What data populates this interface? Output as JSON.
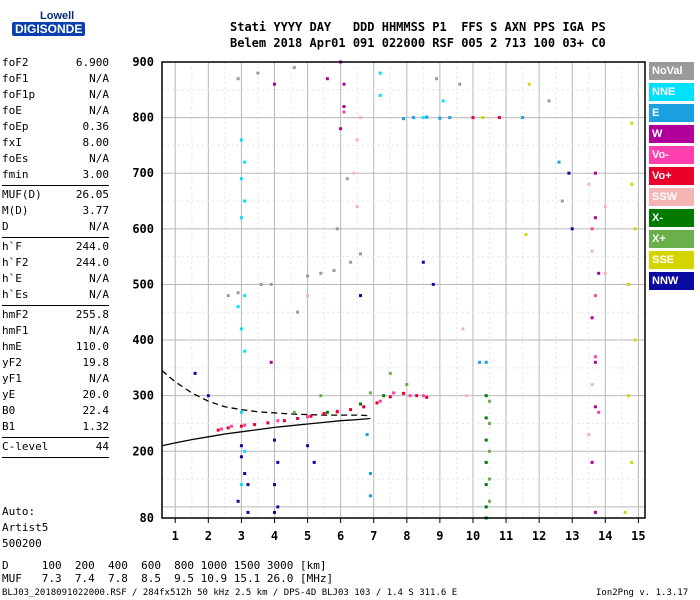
{
  "logo": {
    "top": "Lowell",
    "bottom": "DIGISONDE"
  },
  "header": {
    "line1": "Stati YYYY DAY   DDD HHMMSS P1  FFS S AXN PPS IGA PS",
    "line2": "Belem 2018 Apr01 091 022000 RSF 005 2 713 100 03+ C0"
  },
  "params": [
    {
      "key": "foF2",
      "value": "6.900"
    },
    {
      "key": "foF1",
      "value": "N/A"
    },
    {
      "key": "foF1p",
      "value": "N/A"
    },
    {
      "key": "foE",
      "value": "N/A"
    },
    {
      "key": "foEp",
      "value": "0.36"
    },
    {
      "key": "fxI",
      "value": "8.00"
    },
    {
      "key": "foEs",
      "value": "N/A"
    },
    {
      "key": "fmin",
      "value": "3.00"
    },
    {
      "key": "MUF(D)",
      "value": "26.05"
    },
    {
      "key": "M(D)",
      "value": "3.77"
    },
    {
      "key": "D",
      "value": "N/A"
    },
    {
      "key": "h`F",
      "value": "244.0"
    },
    {
      "key": "h`F2",
      "value": "244.0"
    },
    {
      "key": "h`E",
      "value": "N/A"
    },
    {
      "key": "h`Es",
      "value": "N/A"
    },
    {
      "key": "hmF2",
      "value": "255.8"
    },
    {
      "key": "hmF1",
      "value": "N/A"
    },
    {
      "key": "hmE",
      "value": "110.0"
    },
    {
      "key": "yF2",
      "value": "19.8"
    },
    {
      "key": "yF1",
      "value": "N/A"
    },
    {
      "key": "yE",
      "value": "20.0"
    },
    {
      "key": "B0",
      "value": "22.4"
    },
    {
      "key": "B1",
      "value": "1.32"
    },
    {
      "key": "C-level",
      "value": "44"
    }
  ],
  "auto": {
    "label": "Auto:",
    "artist": "Artist5",
    "version": "500200"
  },
  "footer": {
    "d_row": "D     100  200  400  600  800 1000 1500 3000 [km]",
    "muf_row": "MUF   7.3  7.4  7.8  8.5  9.5 10.9 15.1 26.0 [MHz]",
    "file_row": "BLJ03_2018091022000.RSF / 284fx512h 50 kHz 2.5 km / DPS-4D BLJ03 103 / 1.4 S 311.6 E",
    "version_row": "Ion2Png v. 1.3.17"
  },
  "legend": [
    {
      "label": "NoVal",
      "color": "#9a9a9a"
    },
    {
      "label": "NNE",
      "color": "#00e0ff"
    },
    {
      "label": "E",
      "color": "#1a9fdf"
    },
    {
      "label": "W",
      "color": "#b0009a"
    },
    {
      "label": "Vo-",
      "color": "#ff3fae"
    },
    {
      "label": "Vo+",
      "color": "#e8002a"
    },
    {
      "label": "SSW",
      "color": "#f4b4b4"
    },
    {
      "label": "X-",
      "color": "#007a00"
    },
    {
      "label": "X+",
      "color": "#6ab04a"
    },
    {
      "label": "SSE",
      "color": "#d4d400"
    },
    {
      "label": "NNW",
      "color": "#0a0aa0"
    }
  ],
  "chart_data": {
    "type": "scatter",
    "xlabel": "",
    "ylabel": "",
    "xlim": [
      0.6,
      15.2
    ],
    "ylim": [
      80,
      900
    ],
    "x_ticks": [
      1,
      2,
      3,
      4,
      5,
      6,
      7,
      8,
      9,
      10,
      11,
      12,
      13,
      14,
      15
    ],
    "y_ticks": [
      80,
      200,
      300,
      400,
      500,
      600,
      700,
      800,
      900
    ],
    "grid": true,
    "series": [
      {
        "name": "SSE",
        "values": [
          [
            14.8,
            790
          ],
          [
            14.8,
            680
          ],
          [
            14.9,
            600
          ],
          [
            14.7,
            500
          ],
          [
            14.9,
            400
          ],
          [
            14.7,
            300
          ],
          [
            14.8,
            180
          ],
          [
            14.6,
            90
          ],
          [
            11.7,
            860
          ],
          [
            11.6,
            590
          ],
          [
            10.3,
            800
          ]
        ]
      },
      {
        "name": "NNE",
        "values": [
          [
            3.0,
            760
          ],
          [
            3.1,
            720
          ],
          [
            3.0,
            690
          ],
          [
            3.1,
            650
          ],
          [
            3.0,
            620
          ],
          [
            3.1,
            480
          ],
          [
            2.9,
            460
          ],
          [
            3.0,
            420
          ],
          [
            3.1,
            380
          ],
          [
            3.0,
            270
          ],
          [
            3.1,
            200
          ],
          [
            3.0,
            140
          ],
          [
            7.2,
            880
          ],
          [
            7.2,
            840
          ],
          [
            8.5,
            800
          ],
          [
            9.1,
            830
          ]
        ]
      },
      {
        "name": "E",
        "values": [
          [
            8.2,
            800
          ],
          [
            8.6,
            801
          ],
          [
            9.0,
            799
          ],
          [
            9.3,
            800
          ],
          [
            7.9,
            798
          ],
          [
            6.8,
            230
          ],
          [
            6.9,
            160
          ],
          [
            6.9,
            120
          ],
          [
            11.5,
            800
          ],
          [
            12.6,
            720
          ],
          [
            10.2,
            360
          ],
          [
            10.4,
            360
          ]
        ]
      },
      {
        "name": "W",
        "values": [
          [
            6.0,
            900
          ],
          [
            6.1,
            860
          ],
          [
            6.1,
            820
          ],
          [
            6.0,
            780
          ],
          [
            13.7,
            700
          ],
          [
            13.7,
            620
          ],
          [
            13.8,
            520
          ],
          [
            13.6,
            440
          ],
          [
            13.7,
            360
          ],
          [
            13.7,
            280
          ],
          [
            13.6,
            180
          ],
          [
            13.7,
            90
          ],
          [
            4.0,
            860
          ],
          [
            3.9,
            360
          ],
          [
            5.6,
            870
          ]
        ]
      },
      {
        "name": "Vo-",
        "values": [
          [
            6.1,
            810
          ],
          [
            13.6,
            600
          ],
          [
            13.7,
            480
          ],
          [
            13.7,
            370
          ],
          [
            13.8,
            270
          ],
          [
            2.4,
            240
          ],
          [
            2.7,
            245
          ],
          [
            3.1,
            247
          ],
          [
            4.1,
            255
          ],
          [
            5.0,
            262
          ],
          [
            5.9,
            272
          ],
          [
            6.7,
            280
          ],
          [
            7.2,
            290
          ],
          [
            7.6,
            305
          ],
          [
            8.1,
            300
          ],
          [
            8.5,
            300
          ]
        ]
      },
      {
        "name": "Vo+",
        "values": [
          [
            2.3,
            238
          ],
          [
            2.6,
            242
          ],
          [
            3.0,
            245
          ],
          [
            3.4,
            248
          ],
          [
            3.8,
            251
          ],
          [
            4.3,
            255
          ],
          [
            4.7,
            259
          ],
          [
            5.1,
            263
          ],
          [
            5.5,
            268
          ],
          [
            5.9,
            271
          ],
          [
            6.3,
            275
          ],
          [
            6.7,
            280
          ],
          [
            7.1,
            287
          ],
          [
            7.5,
            298
          ],
          [
            7.9,
            304
          ],
          [
            8.3,
            300
          ],
          [
            8.6,
            297
          ],
          [
            10.0,
            800
          ],
          [
            10.8,
            800
          ]
        ]
      },
      {
        "name": "SSW",
        "values": [
          [
            6.6,
            800
          ],
          [
            6.5,
            760
          ],
          [
            6.4,
            700
          ],
          [
            6.5,
            640
          ],
          [
            13.5,
            680
          ],
          [
            13.6,
            560
          ],
          [
            14.0,
            640
          ],
          [
            14.0,
            520
          ],
          [
            13.6,
            320
          ],
          [
            13.5,
            230
          ],
          [
            9.7,
            420
          ],
          [
            9.8,
            300
          ],
          [
            5.0,
            480
          ]
        ]
      },
      {
        "name": "X-",
        "values": [
          [
            10.4,
            300
          ],
          [
            10.4,
            260
          ],
          [
            10.4,
            220
          ],
          [
            10.4,
            180
          ],
          [
            10.4,
            140
          ],
          [
            10.4,
            100
          ],
          [
            10.4,
            80
          ],
          [
            7.3,
            300
          ],
          [
            6.6,
            285
          ],
          [
            5.6,
            270
          ]
        ]
      },
      {
        "name": "X+",
        "values": [
          [
            10.5,
            290
          ],
          [
            10.5,
            250
          ],
          [
            10.5,
            200
          ],
          [
            10.5,
            150
          ],
          [
            10.5,
            110
          ],
          [
            7.5,
            340
          ],
          [
            8.0,
            320
          ],
          [
            6.9,
            305
          ],
          [
            5.4,
            300
          ],
          [
            4.6,
            270
          ]
        ]
      },
      {
        "name": "NNW",
        "values": [
          [
            3.0,
            210
          ],
          [
            3.0,
            190
          ],
          [
            3.1,
            160
          ],
          [
            3.2,
            140
          ],
          [
            2.9,
            110
          ],
          [
            3.2,
            90
          ],
          [
            4.0,
            220
          ],
          [
            4.1,
            180
          ],
          [
            4.0,
            140
          ],
          [
            4.1,
            100
          ],
          [
            4.0,
            90
          ],
          [
            5.0,
            210
          ],
          [
            5.2,
            180
          ],
          [
            2.0,
            300
          ],
          [
            1.6,
            340
          ],
          [
            8.5,
            540
          ],
          [
            8.8,
            500
          ],
          [
            12.9,
            700
          ],
          [
            13.0,
            600
          ],
          [
            6.6,
            480
          ]
        ]
      },
      {
        "name": "NoVal",
        "values": [
          [
            2.6,
            480
          ],
          [
            2.9,
            485
          ],
          [
            3.6,
            500
          ],
          [
            3.9,
            500
          ],
          [
            5.0,
            515
          ],
          [
            5.4,
            520
          ],
          [
            5.8,
            525
          ],
          [
            6.3,
            540
          ],
          [
            6.6,
            555
          ],
          [
            2.9,
            870
          ],
          [
            3.5,
            880
          ],
          [
            4.6,
            890
          ],
          [
            8.9,
            870
          ],
          [
            9.6,
            860
          ],
          [
            12.3,
            830
          ],
          [
            12.7,
            650
          ],
          [
            6.2,
            690
          ],
          [
            5.9,
            600
          ],
          [
            4.7,
            450
          ]
        ]
      }
    ],
    "curves": [
      {
        "style": "dashed",
        "values": [
          [
            0.6,
            345
          ],
          [
            1.0,
            325
          ],
          [
            1.5,
            305
          ],
          [
            2.0,
            290
          ],
          [
            2.5,
            280
          ],
          [
            3.0,
            275
          ],
          [
            3.5,
            271
          ],
          [
            4.0,
            269
          ],
          [
            4.5,
            267
          ],
          [
            5.0,
            266
          ],
          [
            5.5,
            265
          ],
          [
            6.0,
            265
          ],
          [
            6.5,
            265
          ],
          [
            6.9,
            264
          ]
        ]
      },
      {
        "style": "solid",
        "values": [
          [
            0.6,
            210
          ],
          [
            1.0,
            215
          ],
          [
            1.5,
            221
          ],
          [
            2.0,
            226
          ],
          [
            2.5,
            231
          ],
          [
            3.0,
            235
          ],
          [
            3.5,
            239
          ],
          [
            4.0,
            243
          ],
          [
            4.5,
            246
          ],
          [
            5.0,
            249
          ],
          [
            5.5,
            252
          ],
          [
            6.0,
            255
          ],
          [
            6.5,
            257
          ],
          [
            6.9,
            259
          ]
        ]
      }
    ]
  }
}
